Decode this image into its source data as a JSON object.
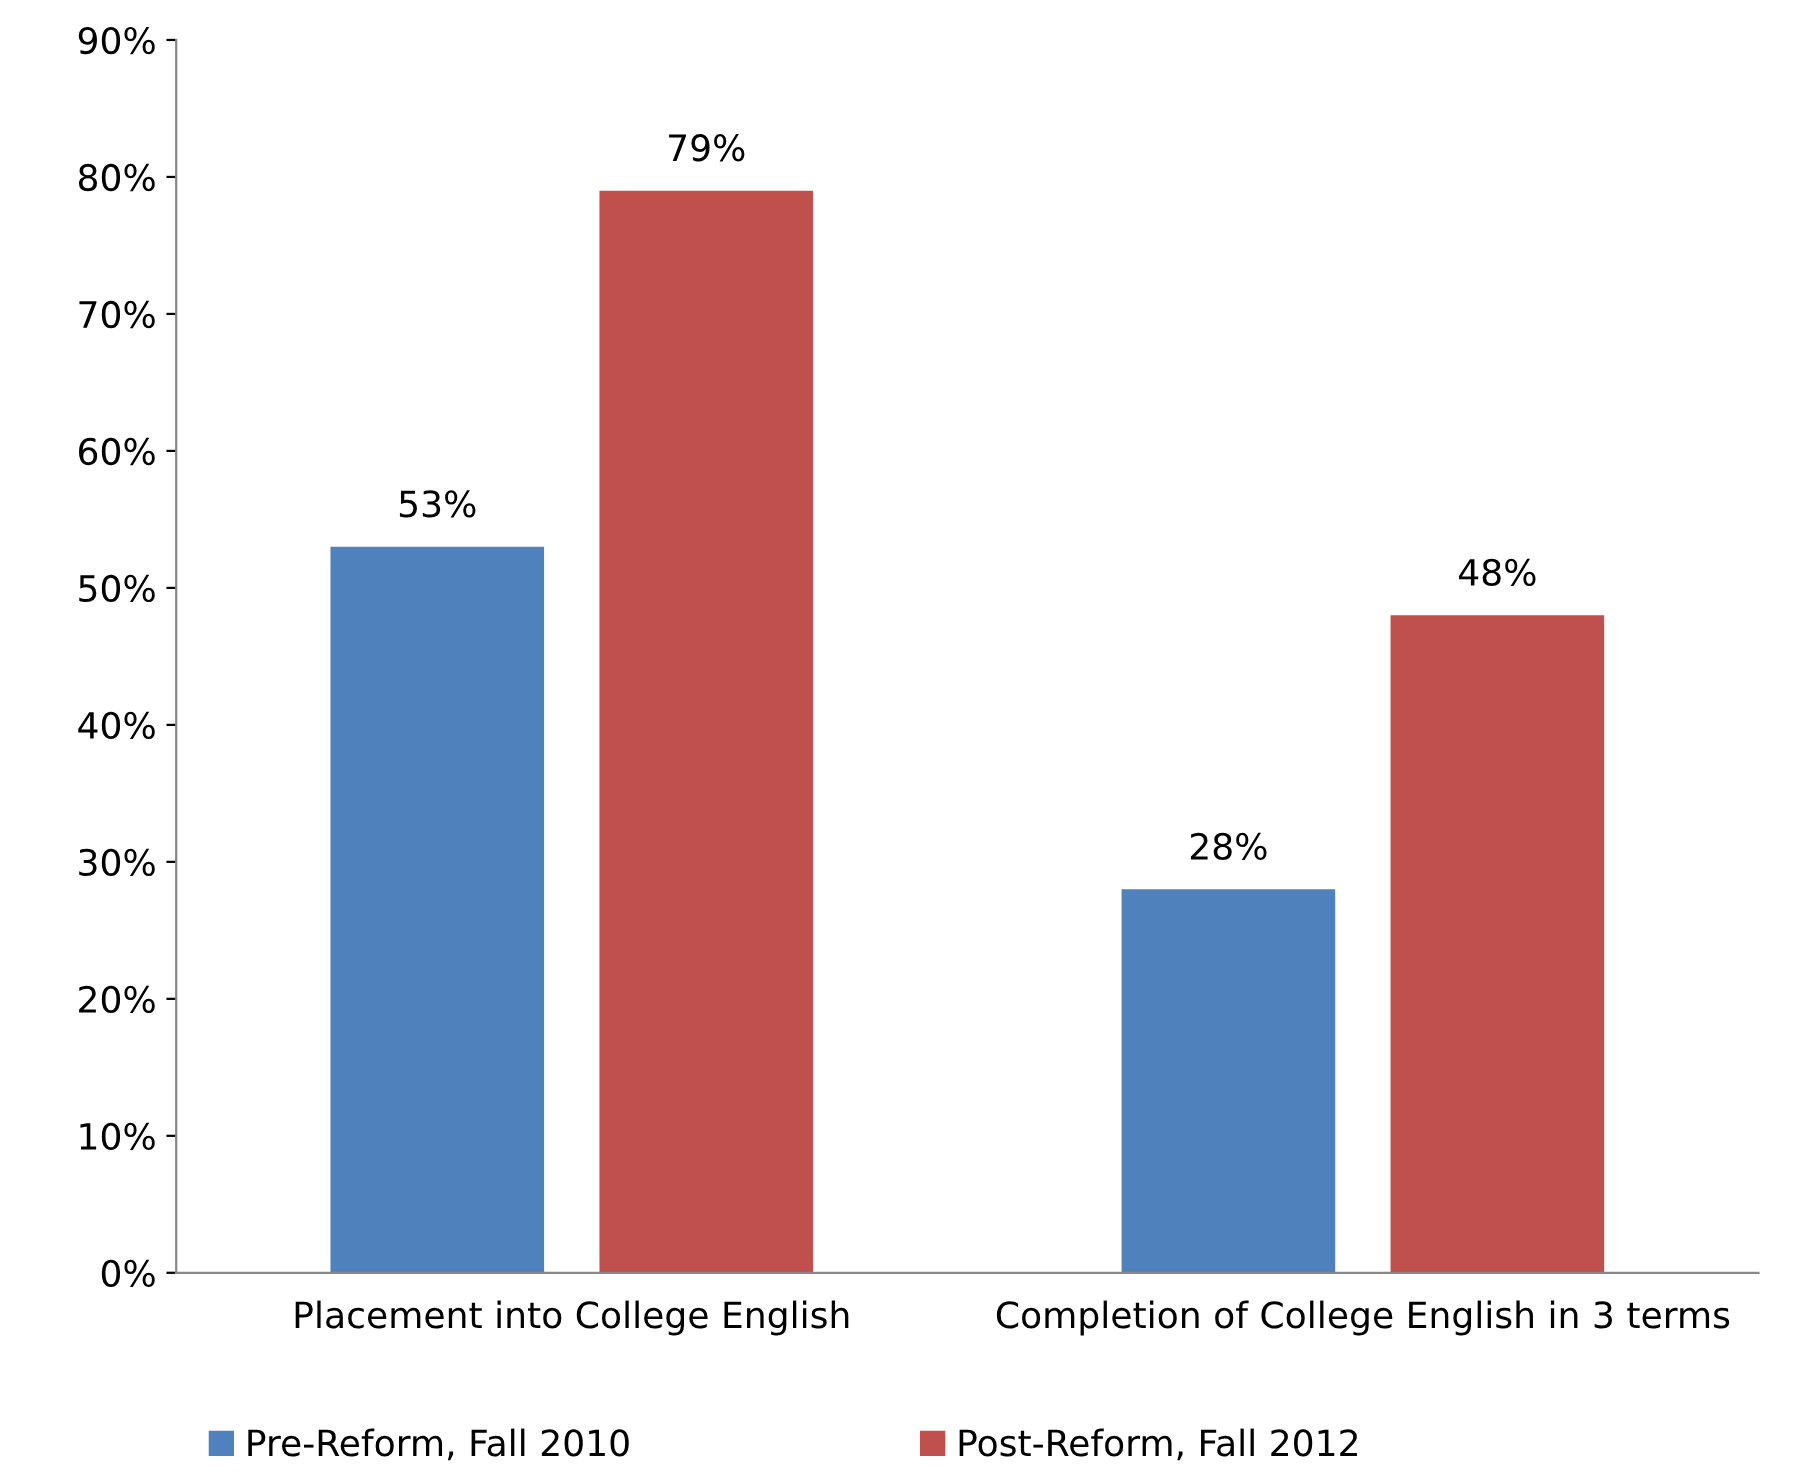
{
  "chart_data": {
    "type": "bar",
    "categories": [
      "Placement into College English",
      "Completion of College English in 3 terms"
    ],
    "series": [
      {
        "name": "Pre-Reform, Fall 2010",
        "color": "#4f81bd",
        "values": [
          53,
          28
        ],
        "value_labels": [
          "53%",
          "28%"
        ]
      },
      {
        "name": "Post-Reform, Fall 2012",
        "color": "#c0504d",
        "values": [
          79,
          48
        ],
        "value_labels": [
          "79%",
          "48%"
        ]
      }
    ],
    "ylim": [
      0,
      90
    ],
    "yticks": [
      {
        "value": 0,
        "label": "0%"
      },
      {
        "value": 10,
        "label": "10%"
      },
      {
        "value": 20,
        "label": "20%"
      },
      {
        "value": 30,
        "label": "30%"
      },
      {
        "value": 40,
        "label": "40%"
      },
      {
        "value": 50,
        "label": "50%"
      },
      {
        "value": 60,
        "label": "60%"
      },
      {
        "value": 70,
        "label": "70%"
      },
      {
        "value": 80,
        "label": "80%"
      },
      {
        "value": 90,
        "label": "90%"
      }
    ],
    "grid": false,
    "legend": "bottom"
  }
}
